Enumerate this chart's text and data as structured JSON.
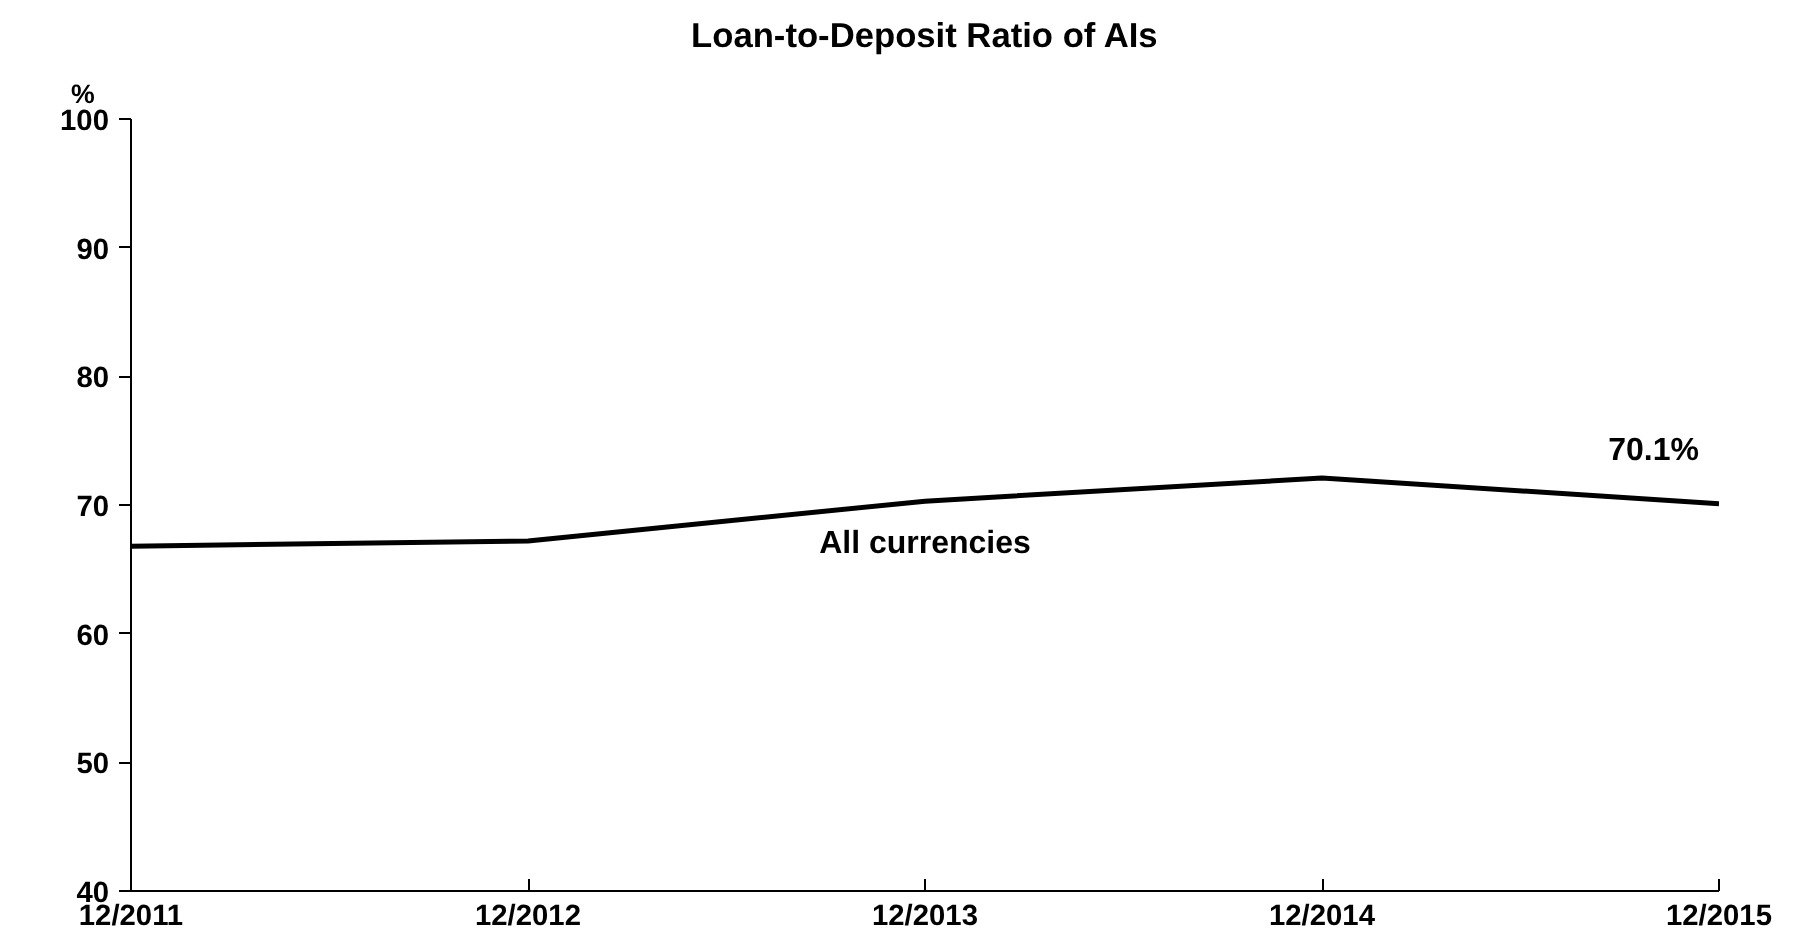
{
  "chart_data": {
    "type": "line",
    "title": "Loan-to-Deposit Ratio of AIs",
    "ylabel": "%",
    "categories": [
      "12/2011",
      "12/2012",
      "12/2013",
      "12/2014",
      "12/2015"
    ],
    "series": [
      {
        "name": "All currencies",
        "color": "#000000",
        "values": [
          66.8,
          67.2,
          70.3,
          72.1,
          70.1
        ]
      }
    ],
    "ylim": [
      40,
      100
    ],
    "yticks": [
      40,
      50,
      60,
      70,
      80,
      90,
      100
    ],
    "annotations": [
      {
        "text": "70.1%",
        "x": "12/2015",
        "y": 70.1
      }
    ],
    "grid": false,
    "marker": "none",
    "line_style": "solid"
  }
}
